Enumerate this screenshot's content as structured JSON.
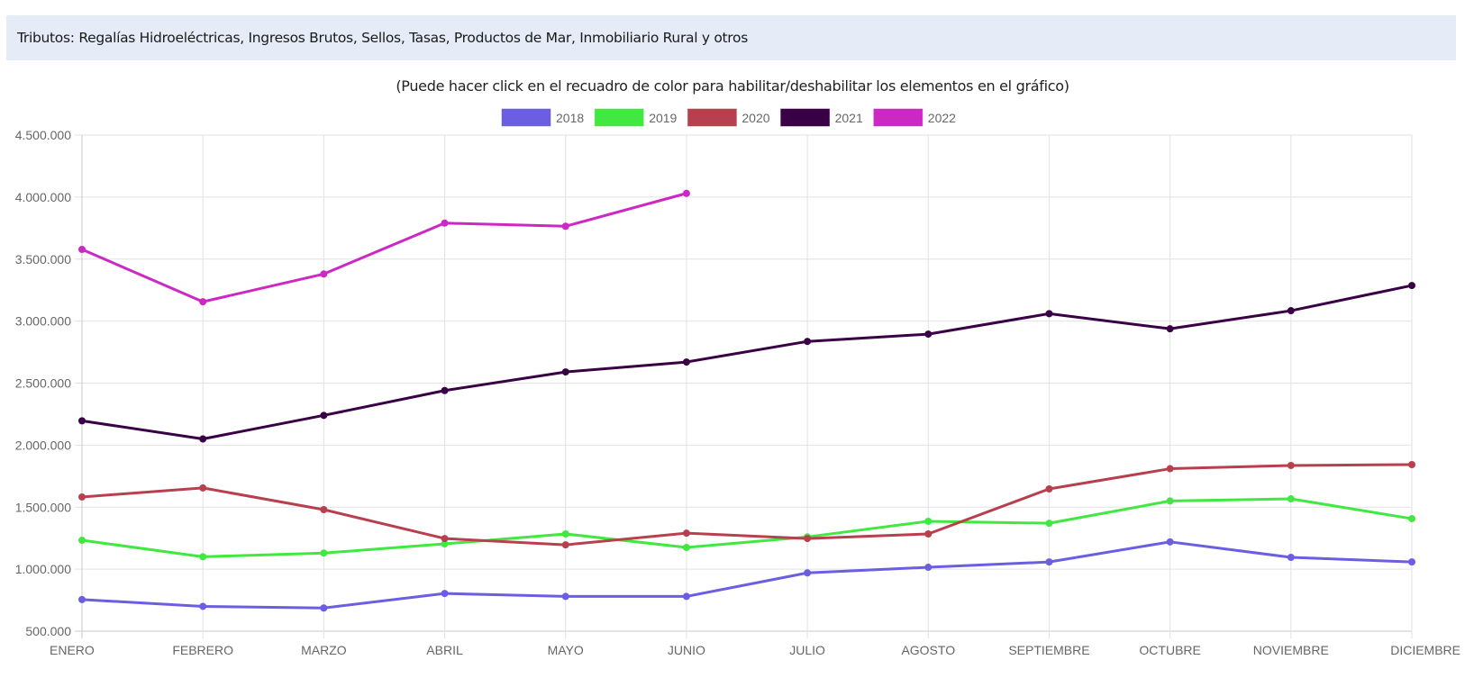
{
  "header": {
    "title": "Tributos: Regalías Hidroeléctricas, Ingresos Brutos, Sellos, Tasas, Productos de Mar, Inmobiliario Rural y otros"
  },
  "hint": "(Puede hacer click en el recuadro de color para habilitar/deshabilitar los elementos en el gráfico)",
  "chart_data": {
    "type": "line",
    "title": "",
    "xlabel": "",
    "ylabel": "",
    "categories": [
      "ENERO",
      "FEBRERO",
      "MARZO",
      "ABRIL",
      "MAYO",
      "JUNIO",
      "JULIO",
      "AGOSTO",
      "SEPTIEMBRE",
      "OCTUBRE",
      "NOVIEMBRE",
      "DICIEMBRE"
    ],
    "ylim": [
      500000,
      4500000
    ],
    "yticks": [
      500000,
      1000000,
      1500000,
      2000000,
      2500000,
      3000000,
      3500000,
      4000000,
      4500000
    ],
    "ytick_labels": [
      "500.000",
      "1.000.000",
      "1.500.000",
      "2.000.000",
      "2.500.000",
      "3.000.000",
      "3.500.000",
      "4.000.000",
      "4.500.000"
    ],
    "grid": true,
    "legend_position": "top-center",
    "series": [
      {
        "name": "2018",
        "color": "#6b5ee0",
        "values": [
          755000,
          700000,
          687000,
          804000,
          780000,
          780000,
          970000,
          1015000,
          1058000,
          1220000,
          1095000,
          1058000
        ]
      },
      {
        "name": "2019",
        "color": "#40e840",
        "values": [
          1233000,
          1100000,
          1130000,
          1204000,
          1284000,
          1175000,
          1260000,
          1386000,
          1370000,
          1550000,
          1567000,
          1407000
        ]
      },
      {
        "name": "2020",
        "color": "#b8404e",
        "values": [
          1582000,
          1655000,
          1480000,
          1247000,
          1196000,
          1290000,
          1247000,
          1284000,
          1647000,
          1810000,
          1836000,
          1843000
        ]
      },
      {
        "name": "2021",
        "color": "#3a0045",
        "values": [
          2196000,
          2050000,
          2240000,
          2440000,
          2590000,
          2670000,
          2836000,
          2895000,
          3060000,
          2938000,
          3084000,
          3287000
        ]
      },
      {
        "name": "2022",
        "color": "#cc28c4",
        "values": [
          3578000,
          3156000,
          3380000,
          3790000,
          3765000,
          4030000
        ]
      }
    ]
  }
}
